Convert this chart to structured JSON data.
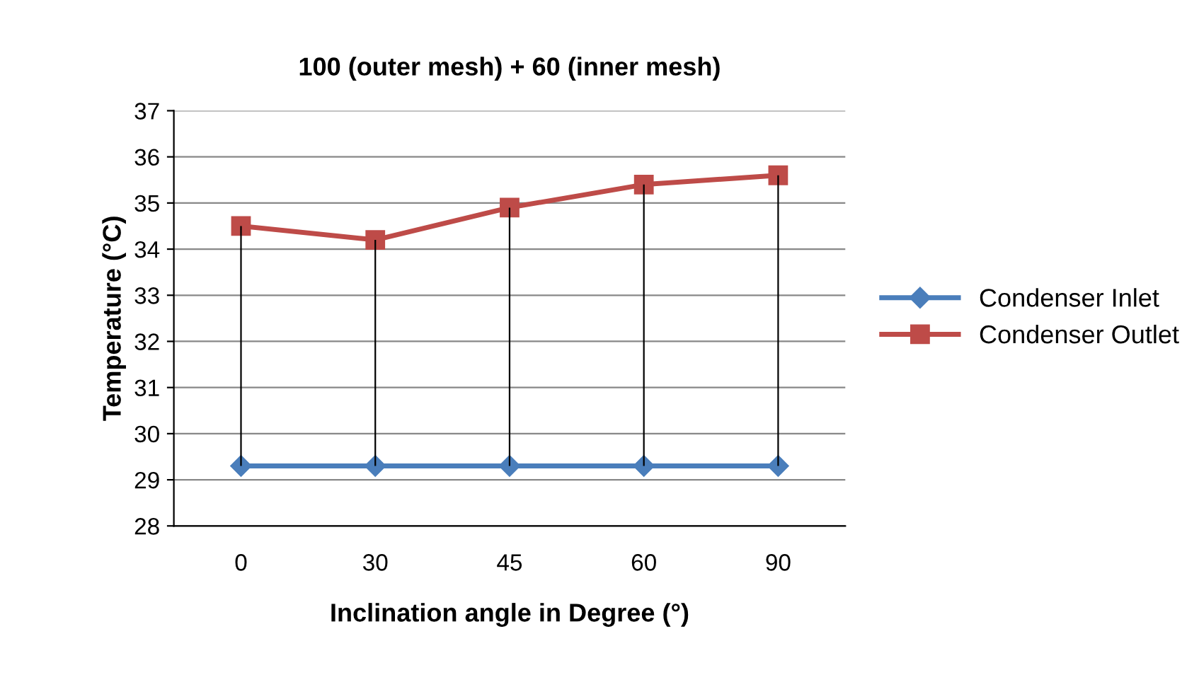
{
  "chart_data": {
    "type": "line",
    "title": "100 (outer mesh) + 60 (inner mesh)",
    "xlabel": "Inclination angle in Degree (°)",
    "ylabel": "Temperature (°C)",
    "categories": [
      "0",
      "30",
      "45",
      "60",
      "90"
    ],
    "series": [
      {
        "name": "Condenser Inlet",
        "color": "#4a7ebb",
        "marker": "diamond",
        "values": [
          29.3,
          29.3,
          29.3,
          29.3,
          29.3
        ]
      },
      {
        "name": "Condenser Outlet",
        "color": "#be4b48",
        "marker": "square",
        "values": [
          34.5,
          34.2,
          34.9,
          35.4,
          35.6
        ],
        "errors": [
          [
            29.3,
            34.5
          ],
          [
            29.3,
            34.2
          ],
          [
            29.3,
            34.9
          ],
          [
            29.3,
            35.4
          ],
          [
            29.3,
            35.6
          ]
        ]
      }
    ],
    "ylim": [
      28,
      37
    ],
    "yticks": [
      28,
      29,
      30,
      31,
      32,
      33,
      34,
      35,
      36,
      37
    ],
    "grid": "y",
    "legend": "right",
    "line_style": "solid"
  }
}
